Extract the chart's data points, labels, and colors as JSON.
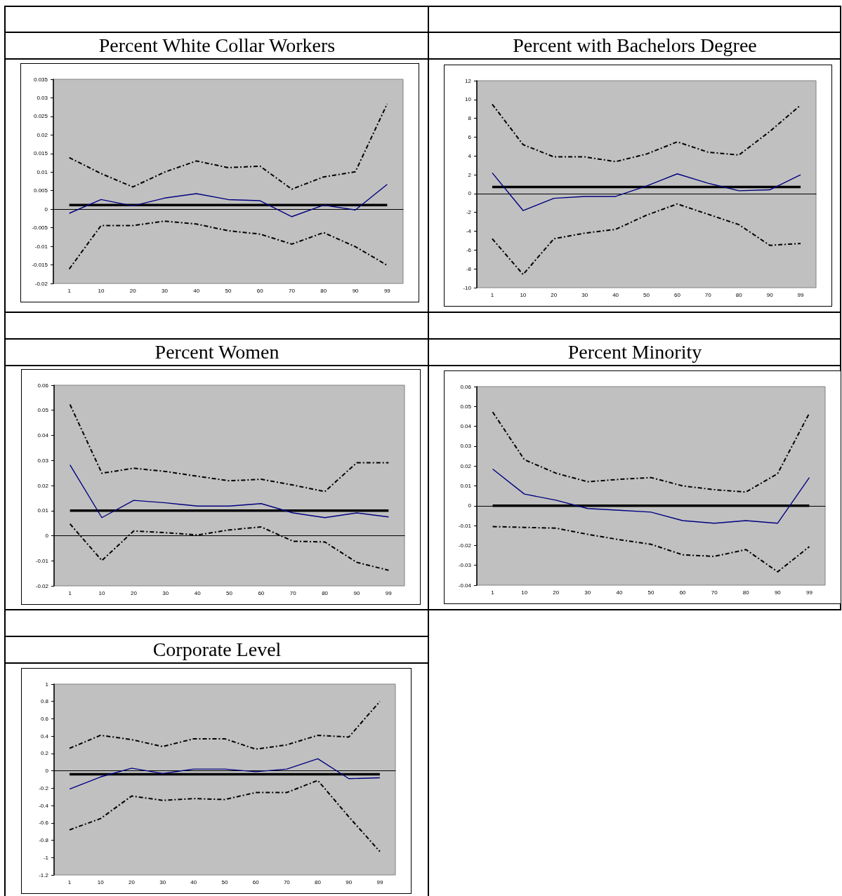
{
  "chart_data": [
    {
      "type": "line",
      "title": "Percent White Collar Workers",
      "categories": [
        "1",
        "10",
        "20",
        "30",
        "40",
        "50",
        "60",
        "70",
        "80",
        "90",
        "99"
      ],
      "ylim": [
        -0.02,
        0.035
      ],
      "yticks": [
        -0.02,
        -0.015,
        -0.01,
        -0.005,
        0,
        0.005,
        0.01,
        0.015,
        0.02,
        0.025,
        0.03,
        0.035
      ],
      "grid": false,
      "marker": "none",
      "series": [
        {
          "color": "#000080",
          "line_style": "solid",
          "values": [
            -0.0011,
            0.0026,
            0.0009,
            0.003,
            0.0042,
            0.0026,
            0.0023,
            -0.002,
            0.0011,
            -0.0002,
            0.0067
          ]
        },
        {
          "color": "#000000",
          "line_style": "solid",
          "values": [
            0.0011,
            0.0011,
            0.0011,
            0.0011,
            0.0011,
            0.0011,
            0.0011,
            0.0011,
            0.0011,
            0.0011,
            0.0011
          ]
        },
        {
          "color": "#000000",
          "line_style": "dashed",
          "values": [
            0.0139,
            0.0096,
            0.006,
            0.01,
            0.013,
            0.0112,
            0.0116,
            0.0054,
            0.0087,
            0.0101,
            0.0284
          ]
        },
        {
          "color": "#000000",
          "line_style": "dashed",
          "values": [
            -0.0161,
            -0.0044,
            -0.0044,
            -0.0032,
            -0.004,
            -0.0058,
            -0.0067,
            -0.0094,
            -0.0063,
            -0.0101,
            -0.0151
          ]
        }
      ]
    },
    {
      "type": "line",
      "title": "Percent with Bachelors Degree",
      "categories": [
        "1",
        "10",
        "20",
        "30",
        "40",
        "50",
        "60",
        "70",
        "80",
        "90",
        "99"
      ],
      "ylim": [
        -10,
        12
      ],
      "yticks": [
        -10,
        -8,
        -6,
        -4,
        -2,
        0,
        2,
        4,
        6,
        8,
        10,
        12
      ],
      "grid": false,
      "marker": "none",
      "series": [
        {
          "color": "#000080",
          "line_style": "solid",
          "values": [
            2.2,
            -1.8,
            -0.5,
            -0.3,
            -0.3,
            0.8,
            2.1,
            1.1,
            0.3,
            0.4,
            2.0
          ]
        },
        {
          "color": "#000000",
          "line_style": "solid",
          "values": [
            0.7,
            0.7,
            0.7,
            0.7,
            0.7,
            0.7,
            0.7,
            0.7,
            0.7,
            0.7,
            0.7
          ]
        },
        {
          "color": "#000000",
          "line_style": "dashed",
          "values": [
            9.5,
            5.2,
            3.9,
            3.9,
            3.4,
            4.2,
            5.5,
            4.4,
            4.1,
            6.6,
            9.4
          ]
        },
        {
          "color": "#000000",
          "line_style": "dashed",
          "values": [
            -4.8,
            -8.6,
            -4.8,
            -4.2,
            -3.8,
            -2.3,
            -1.1,
            -2.2,
            -3.3,
            -5.5,
            -5.3
          ]
        }
      ]
    },
    {
      "type": "line",
      "title": "Percent Women",
      "categories": [
        "1",
        "10",
        "20",
        "30",
        "40",
        "50",
        "60",
        "70",
        "80",
        "90",
        "99"
      ],
      "ylim": [
        -0.02,
        0.06
      ],
      "yticks": [
        -0.02,
        -0.01,
        0,
        0.01,
        0.02,
        0.03,
        0.04,
        0.05,
        0.06
      ],
      "grid": false,
      "marker": "none",
      "series": [
        {
          "color": "#000080",
          "line_style": "solid",
          "values": [
            0.0282,
            0.0072,
            0.0141,
            0.0131,
            0.0118,
            0.0118,
            0.0128,
            0.0091,
            0.0072,
            0.0091,
            0.0075
          ]
        },
        {
          "color": "#000000",
          "line_style": "solid",
          "values": [
            0.01,
            0.01,
            0.01,
            0.01,
            0.01,
            0.01,
            0.01,
            0.01,
            0.01,
            0.01,
            0.01
          ]
        },
        {
          "color": "#000000",
          "line_style": "dashed",
          "values": [
            0.0523,
            0.0249,
            0.0269,
            0.0256,
            0.0237,
            0.0219,
            0.0225,
            0.0202,
            0.0176,
            0.0291,
            0.0291
          ]
        },
        {
          "color": "#000000",
          "line_style": "dashed",
          "values": [
            0.0047,
            -0.0099,
            0.0019,
            0.0012,
            0.0003,
            0.0023,
            0.0035,
            -0.0022,
            -0.0025,
            -0.0106,
            -0.0138
          ]
        }
      ]
    },
    {
      "type": "line",
      "title": "Percent Minority",
      "categories": [
        "1",
        "10",
        "20",
        "30",
        "40",
        "50",
        "60",
        "70",
        "80",
        "90",
        "99"
      ],
      "ylim": [
        -0.04,
        0.06
      ],
      "yticks": [
        -0.04,
        -0.03,
        -0.02,
        -0.01,
        0,
        0.01,
        0.02,
        0.03,
        0.04,
        0.05,
        0.06
      ],
      "grid": false,
      "marker": "none",
      "series": [
        {
          "color": "#000080",
          "line_style": "solid",
          "values": [
            0.0185,
            0.0059,
            0.0028,
            -0.0014,
            -0.0023,
            -0.0032,
            -0.0075,
            -0.0088,
            -0.0075,
            -0.0088,
            0.0142
          ]
        },
        {
          "color": "#000000",
          "line_style": "solid",
          "values": [
            0,
            0,
            0,
            0,
            0,
            0,
            0,
            0,
            0,
            0,
            0
          ]
        },
        {
          "color": "#000000",
          "line_style": "dashed",
          "values": [
            0.0472,
            0.0232,
            0.0164,
            0.0121,
            0.0133,
            0.0142,
            0.01,
            0.0081,
            0.0069,
            0.0162,
            0.0466
          ]
        },
        {
          "color": "#000000",
          "line_style": "dashed",
          "values": [
            -0.0105,
            -0.0109,
            -0.0113,
            -0.0144,
            -0.0171,
            -0.0194,
            -0.0247,
            -0.0255,
            -0.0221,
            -0.0333,
            -0.0206
          ]
        }
      ]
    },
    {
      "type": "line",
      "title": "Corporate Level",
      "categories": [
        "1",
        "10",
        "20",
        "30",
        "40",
        "50",
        "60",
        "70",
        "80",
        "90",
        "99"
      ],
      "ylim": [
        -1.2,
        1
      ],
      "yticks": [
        -1.2,
        -1,
        -0.8,
        -0.6,
        -0.4,
        -0.2,
        0,
        0.2,
        0.4,
        0.6,
        0.8,
        1
      ],
      "grid": false,
      "marker": "none",
      "series": [
        {
          "color": "#000080",
          "line_style": "solid",
          "values": [
            -0.21,
            -0.07,
            0.03,
            -0.03,
            0.02,
            0.02,
            -0.01,
            0.02,
            0.14,
            -0.09,
            -0.08
          ]
        },
        {
          "color": "#000000",
          "line_style": "solid",
          "values": [
            -0.04,
            -0.04,
            -0.04,
            -0.04,
            -0.04,
            -0.04,
            -0.04,
            -0.04,
            -0.04,
            -0.04,
            -0.04
          ]
        },
        {
          "color": "#000000",
          "line_style": "dashed",
          "values": [
            0.26,
            0.41,
            0.36,
            0.28,
            0.37,
            0.37,
            0.25,
            0.3,
            0.41,
            0.39,
            0.8
          ]
        },
        {
          "color": "#000000",
          "line_style": "dashed",
          "values": [
            -0.68,
            -0.55,
            -0.29,
            -0.34,
            -0.32,
            -0.33,
            -0.25,
            -0.25,
            -0.11,
            -0.53,
            -0.93
          ]
        }
      ]
    }
  ]
}
